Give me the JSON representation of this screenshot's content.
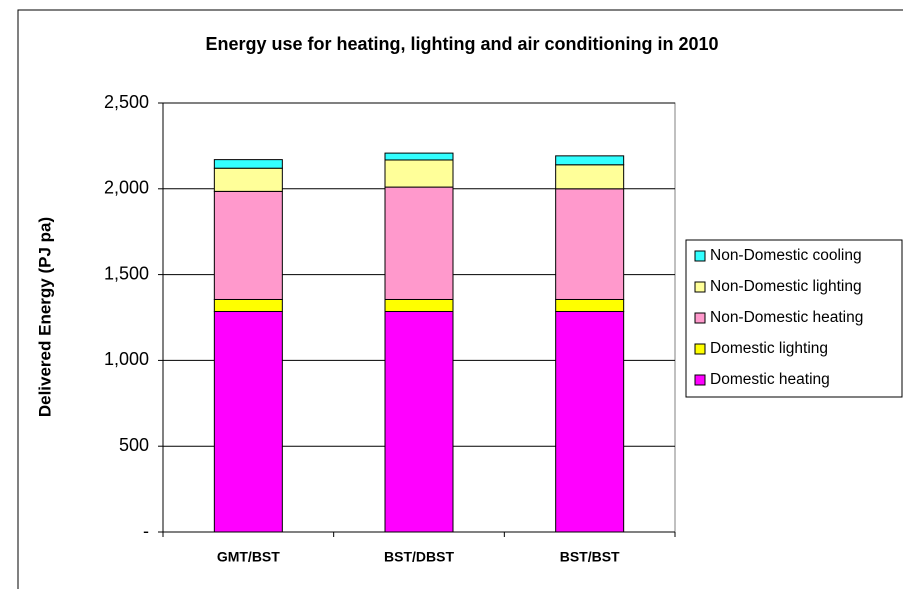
{
  "chart_data": {
    "type": "stacked_bar",
    "title": "Energy use for heating, lighting and air conditioning in 2010",
    "y_label": "Delivered Energy (PJ pa)",
    "categories": [
      "GMT/BST",
      "BST/DBST",
      "BST/BST"
    ],
    "series": [
      {
        "name": "Domestic  heating",
        "color": "#ff00ff",
        "values": [
          1285,
          1285,
          1285
        ]
      },
      {
        "name": "Domestic  lighting",
        "color": "#ffff00",
        "values": [
          70,
          70,
          70
        ]
      },
      {
        "name": "Non-Domestic heating",
        "color": "#ff99cc",
        "values": [
          630,
          655,
          645
        ]
      },
      {
        "name": "Non-Domestic lighting",
        "color": "#ffff99",
        "values": [
          135,
          158,
          140
        ]
      },
      {
        "name": "Non-Domestic cooling",
        "color": "#33ffff",
        "values": [
          50,
          40,
          52
        ]
      }
    ],
    "ylim": [
      0,
      2500
    ],
    "yticks": [
      {
        "value": 0,
        "label": "-"
      },
      500,
      {
        "value": 1000,
        "label": "1,000"
      },
      {
        "value": 1500,
        "label": "1,500"
      },
      {
        "value": 2000,
        "label": "2,000"
      },
      {
        "value": 2500,
        "label": "2,500"
      }
    ],
    "grid": true,
    "legend": "right"
  }
}
